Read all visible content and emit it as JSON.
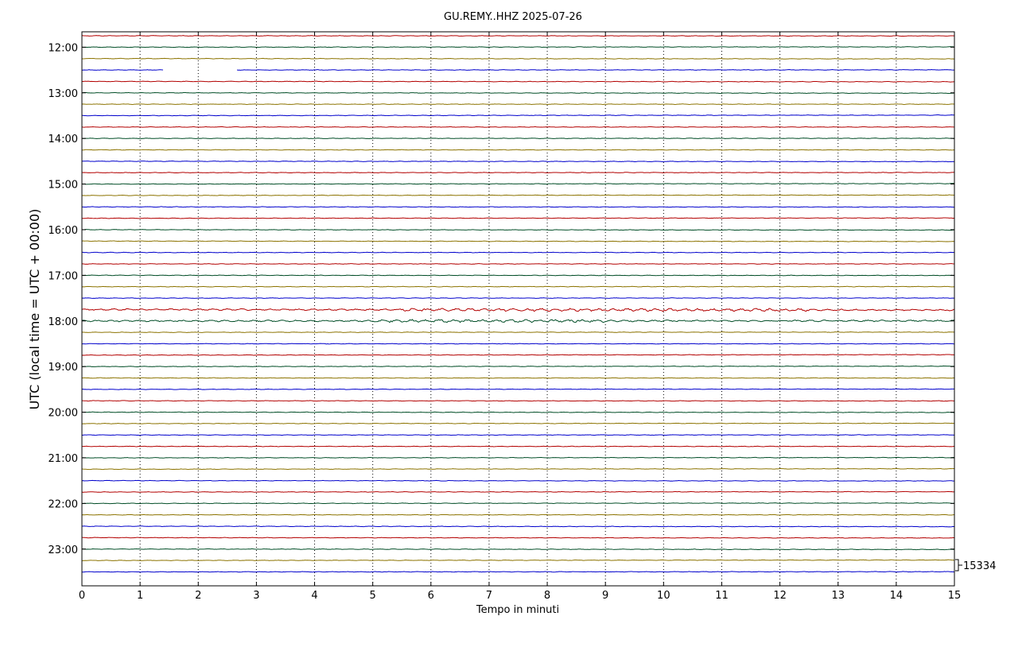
{
  "chart_data": {
    "type": "line",
    "chart_kind": "helicorder",
    "title": "GU.REMY..HHZ 2025-07-26",
    "xlabel": "Tempo in minuti",
    "ylabel": "UTC (local time = UTC + 00:00)",
    "xlim": [
      0,
      15
    ],
    "x_ticks": [
      "0",
      "1",
      "2",
      "3",
      "4",
      "5",
      "6",
      "7",
      "8",
      "9",
      "10",
      "11",
      "12",
      "13",
      "14",
      "15"
    ],
    "y_tick_labels": [
      "12:00",
      "13:00",
      "14:00",
      "15:00",
      "16:00",
      "17:00",
      "18:00",
      "19:00",
      "20:00",
      "21:00",
      "22:00",
      "23:00"
    ],
    "trace_start": "11:45",
    "trace_minutes": 15,
    "trace_count": 48,
    "trace_colors": [
      "#b30000",
      "#004d26",
      "#8c7300",
      "#0000cc"
    ],
    "vertical_grid": "dotted",
    "scale_label": "15334",
    "data_gap": {
      "trace_start": "12:30",
      "from_minute": 1.4,
      "to_minute": 2.65
    },
    "notable_events": [
      {
        "trace_start": "17:45",
        "description_minutes": [
          5.5,
          12.5
        ],
        "level": "elevated"
      },
      {
        "trace_start": "18:00",
        "description_minutes": [
          5.0,
          9.0
        ],
        "level": "elevated"
      }
    ]
  }
}
